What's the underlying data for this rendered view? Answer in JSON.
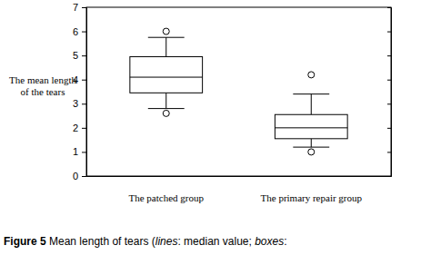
{
  "chart_data": {
    "type": "box",
    "ylabel": [
      "The mean length",
      "of the tears"
    ],
    "categories": [
      "The patched group",
      "The primary repair group"
    ],
    "boxes": [
      {
        "low": 2.8,
        "q1": 3.45,
        "median": 4.1,
        "q3": 4.95,
        "high": 5.75,
        "outliers": [
          6.0,
          2.6
        ]
      },
      {
        "low": 1.2,
        "q1": 1.55,
        "median": 2.0,
        "q3": 2.55,
        "high": 3.4,
        "outliers": [
          4.2,
          1.0
        ]
      }
    ],
    "color": "#000000",
    "ylim": [
      0,
      7
    ],
    "yticks": [
      0,
      1,
      2,
      3,
      4,
      5,
      6,
      7
    ],
    "grid": false,
    "caption": [
      "Figure 5",
      " Mean length of tears (",
      "lines",
      ": median value; ",
      "boxes",
      ":"
    ]
  }
}
